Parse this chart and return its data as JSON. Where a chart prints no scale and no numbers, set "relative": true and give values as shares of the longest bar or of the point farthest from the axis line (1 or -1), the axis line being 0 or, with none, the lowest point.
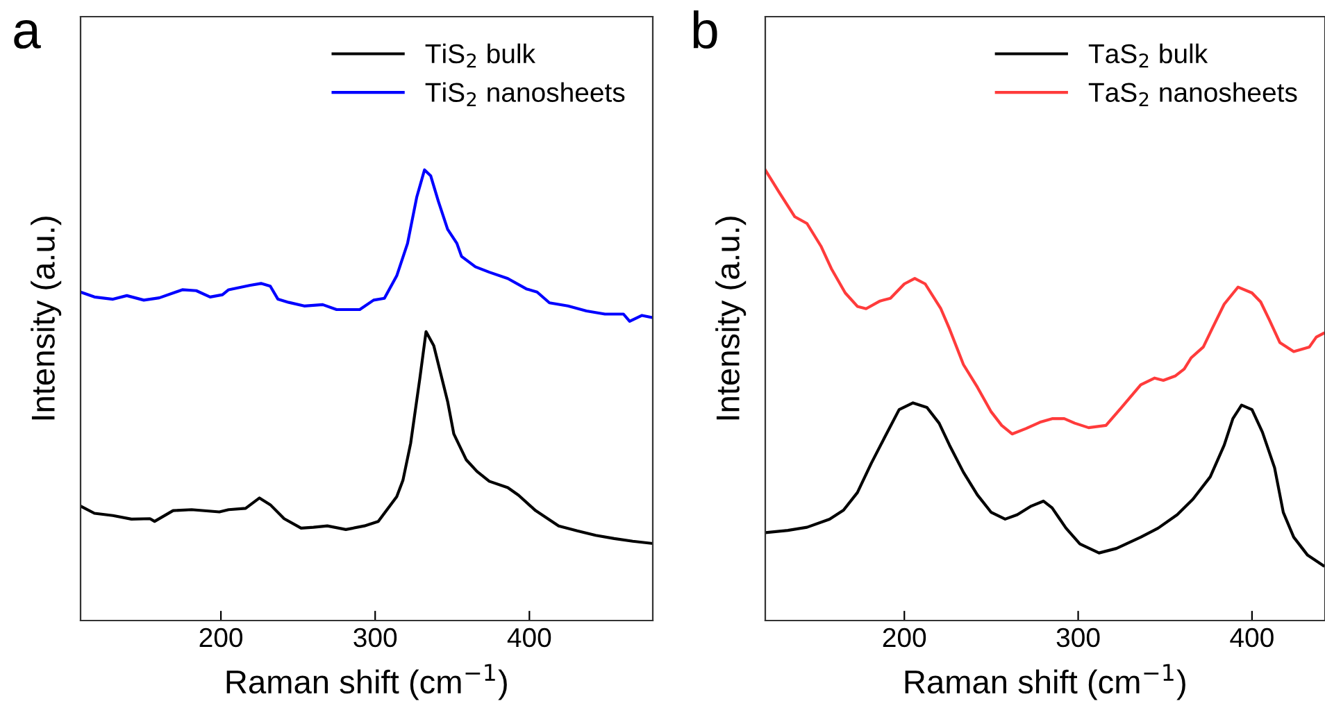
{
  "chart_data": [
    {
      "type": "line",
      "title": "a",
      "xlabel": "Raman shift (cm$^{−1}$)",
      "ylabel": "Intensity (a.u.)",
      "relative": true,
      "xlim": [
        109,
        480
      ],
      "xticks": [
        200,
        300,
        400
      ],
      "tick_labels": "x",
      "legend": "top right",
      "grid": false,
      "series": [
        {
          "name": "TiS$_{2}$ bulk",
          "color": "#000000",
          "x": [
            109,
            118,
            130,
            142,
            154,
            157,
            169,
            181,
            199,
            205,
            216,
            225,
            232,
            241,
            252,
            260,
            269,
            281,
            293,
            302,
            314,
            318,
            323,
            329,
            333,
            338,
            347,
            351,
            359,
            366,
            374,
            386,
            393,
            404,
            419,
            431,
            443,
            455,
            467,
            480
          ],
          "values": [
            0.254,
            0.238,
            0.233,
            0.225,
            0.226,
            0.22,
            0.244,
            0.246,
            0.241,
            0.246,
            0.249,
            0.272,
            0.257,
            0.226,
            0.205,
            0.207,
            0.21,
            0.202,
            0.21,
            0.22,
            0.275,
            0.311,
            0.393,
            0.538,
            0.641,
            0.61,
            0.486,
            0.414,
            0.357,
            0.331,
            0.309,
            0.295,
            0.278,
            0.244,
            0.21,
            0.199,
            0.189,
            0.182,
            0.176,
            0.171
          ]
        },
        {
          "name": "TiS$_{2}$ nanosheets",
          "color": "#0000ff",
          "x": [
            109,
            118,
            130,
            139,
            150,
            160,
            175,
            184,
            193,
            201,
            205,
            219,
            226,
            232,
            237,
            244,
            254,
            266,
            275,
            290,
            299,
            306,
            314,
            321,
            327,
            332,
            336,
            341,
            347,
            353,
            356,
            365,
            374,
            386,
            398,
            405,
            413,
            425,
            437,
            449,
            461,
            465,
            473,
            480
          ],
          "values": [
            0.729,
            0.718,
            0.713,
            0.721,
            0.711,
            0.716,
            0.734,
            0.732,
            0.718,
            0.723,
            0.734,
            0.744,
            0.748,
            0.742,
            0.713,
            0.706,
            0.698,
            0.701,
            0.69,
            0.69,
            0.711,
            0.715,
            0.765,
            0.837,
            0.94,
            1.0,
            0.987,
            0.93,
            0.868,
            0.837,
            0.808,
            0.785,
            0.773,
            0.759,
            0.736,
            0.729,
            0.705,
            0.698,
            0.687,
            0.68,
            0.68,
            0.664,
            0.677,
            0.672
          ]
        }
      ]
    },
    {
      "type": "line",
      "title": "b",
      "xlabel": "Raman shift (cm$^{−1}$)",
      "ylabel": "Intensity (a.u.)",
      "relative": true,
      "xlim": [
        120,
        442
      ],
      "xticks": [
        200,
        300,
        400
      ],
      "tick_labels": "x",
      "legend": "top right",
      "grid": false,
      "series": [
        {
          "name": "TaS$_{2}$ bulk",
          "color": "#000000",
          "x": [
            120,
            133,
            144,
            157,
            165,
            173,
            181,
            189,
            197,
            205,
            213,
            220,
            226,
            234,
            242,
            250,
            258,
            265,
            273,
            280,
            285,
            293,
            301,
            312,
            322,
            336,
            346,
            357,
            366,
            376,
            384,
            389,
            394,
            400,
            406,
            413,
            418,
            424,
            432,
            441
          ],
          "values": [
            0.195,
            0.2,
            0.207,
            0.225,
            0.245,
            0.284,
            0.349,
            0.409,
            0.468,
            0.483,
            0.473,
            0.438,
            0.389,
            0.329,
            0.279,
            0.24,
            0.225,
            0.235,
            0.254,
            0.265,
            0.25,
            0.205,
            0.17,
            0.15,
            0.16,
            0.185,
            0.205,
            0.235,
            0.269,
            0.319,
            0.389,
            0.448,
            0.478,
            0.468,
            0.418,
            0.339,
            0.24,
            0.185,
            0.145,
            0.122
          ]
        },
        {
          "name": "TaS$_{2}$ nanosheets",
          "color": "#ff3b3b",
          "x": [
            120,
            128,
            137,
            144,
            152,
            158,
            166,
            173,
            178,
            186,
            192,
            200,
            206,
            212,
            221,
            226,
            234,
            242,
            250,
            256,
            262,
            270,
            278,
            285,
            292,
            298,
            306,
            316,
            325,
            336,
            344,
            349,
            356,
            361,
            365,
            372,
            377,
            384,
            392,
            400,
            405,
            410,
            416,
            424,
            433,
            437,
            441
          ],
          "values": [
            1.0,
            0.95,
            0.896,
            0.881,
            0.831,
            0.781,
            0.727,
            0.697,
            0.692,
            0.709,
            0.715,
            0.747,
            0.759,
            0.747,
            0.692,
            0.647,
            0.568,
            0.518,
            0.463,
            0.433,
            0.414,
            0.426,
            0.44,
            0.448,
            0.448,
            0.438,
            0.428,
            0.433,
            0.473,
            0.523,
            0.538,
            0.533,
            0.543,
            0.558,
            0.583,
            0.607,
            0.647,
            0.702,
            0.74,
            0.727,
            0.707,
            0.667,
            0.617,
            0.597,
            0.607,
            0.629,
            0.637
          ]
        }
      ]
    }
  ]
}
